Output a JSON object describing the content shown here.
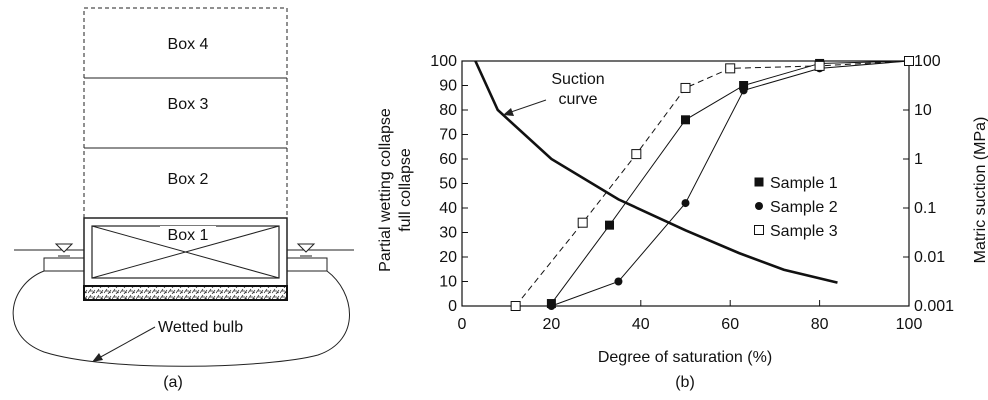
{
  "panel_a": {
    "boxes": [
      "Box 4",
      "Box 3",
      "Box 2",
      "Box 1"
    ],
    "bulb_label": "Wetted bulb",
    "caption": "(a)"
  },
  "panel_b": {
    "caption": "(b)",
    "annotation": [
      "Suction",
      "curve"
    ]
  },
  "chart_data": {
    "type": "line",
    "xlabel": "Degree of saturation (%)",
    "ylabel": [
      "Partial wetting collapse",
      "full collapse"
    ],
    "y2label": "Matric suction (MPa)",
    "xlim": [
      0,
      100
    ],
    "ylim": [
      0,
      100
    ],
    "y2lim": [
      0.001,
      100
    ],
    "y2scale": "log",
    "xticks": [
      0,
      20,
      40,
      60,
      80,
      100
    ],
    "yticks": [
      0,
      10,
      20,
      30,
      40,
      50,
      60,
      70,
      80,
      90,
      100
    ],
    "y2ticks": [
      "0.001",
      "0.01",
      "0.1",
      "1",
      "10",
      "100"
    ],
    "legend_position": "right",
    "series": [
      {
        "name": "Sample 1",
        "marker": "square-filled",
        "line": "solid",
        "x": [
          20,
          33,
          50,
          63,
          80,
          100
        ],
        "y": [
          1,
          33,
          76,
          90,
          99,
          100
        ]
      },
      {
        "name": "Sample 2",
        "marker": "circle-filled",
        "line": "solid",
        "x": [
          20,
          35,
          50,
          63,
          80,
          100
        ],
        "y": [
          0,
          10,
          42,
          88,
          97,
          100
        ]
      },
      {
        "name": "Sample 3",
        "marker": "square-open",
        "line": "dashed",
        "x": [
          12,
          27,
          39,
          50,
          60,
          80,
          100
        ],
        "y": [
          0,
          34,
          62,
          89,
          97,
          98,
          100
        ]
      },
      {
        "name": "",
        "marker": "none",
        "line": "thick",
        "x": [
          3,
          8,
          20,
          35,
          50,
          62,
          72,
          84
        ],
        "y2": [
          100,
          10,
          1,
          0.15,
          0.035,
          0.012,
          0.0055,
          0.003
        ]
      }
    ]
  }
}
